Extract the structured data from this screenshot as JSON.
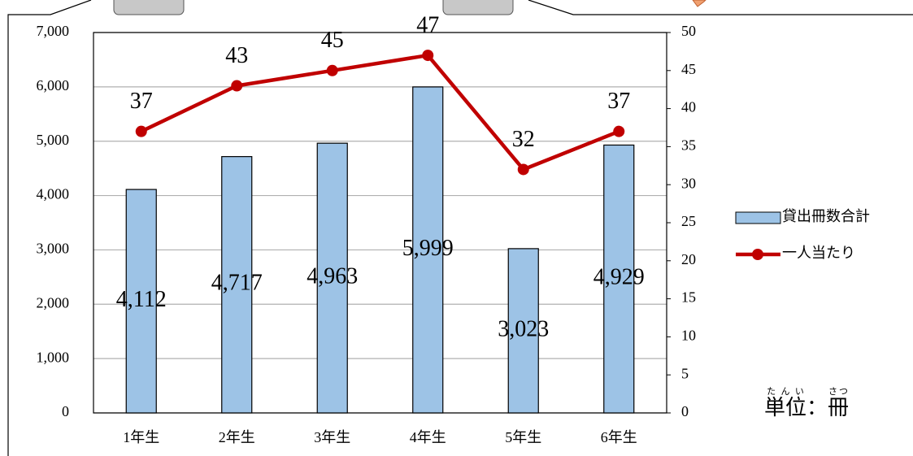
{
  "chart_data": {
    "type": "bar-line",
    "categories": [
      "1年生",
      "2年生",
      "3年生",
      "4年生",
      "5年生",
      "6年生"
    ],
    "series": [
      {
        "name": "貸出冊数合計",
        "type": "bar",
        "color": "#9dc3e6",
        "values": [
          4112,
          4717,
          4963,
          5999,
          3023,
          4929
        ],
        "value_labels": [
          "4,112",
          "4,717",
          "4,963",
          "5,999",
          "3,023",
          "4,929"
        ]
      },
      {
        "name": "一人当たり",
        "type": "line",
        "color": "#c00000",
        "axis": "y2",
        "values": [
          37,
          43,
          45,
          47,
          32,
          37
        ]
      }
    ],
    "ylim": [
      0,
      7000
    ],
    "yticks": [
      0,
      {
        "value": 1000,
        "label": "1,000"
      },
      {
        "value": 2000,
        "label": "2,000"
      },
      {
        "value": 3000,
        "label": "3,000"
      },
      {
        "value": 4000,
        "label": "4,000"
      },
      {
        "value": 5000,
        "label": "5,000"
      },
      {
        "value": 6000,
        "label": "6,000"
      },
      {
        "value": 7000,
        "label": "7,000"
      }
    ],
    "y2lim": [
      0,
      50
    ],
    "y2ticks": [
      0,
      5,
      10,
      15,
      20,
      25,
      30,
      35,
      40,
      45,
      50
    ],
    "grid": true,
    "legend": "right",
    "unit_note": {
      "base1": "単位",
      "ruby1": "たんい",
      "separator": "：",
      "base2": "冊",
      "ruby2": "さつ"
    }
  }
}
